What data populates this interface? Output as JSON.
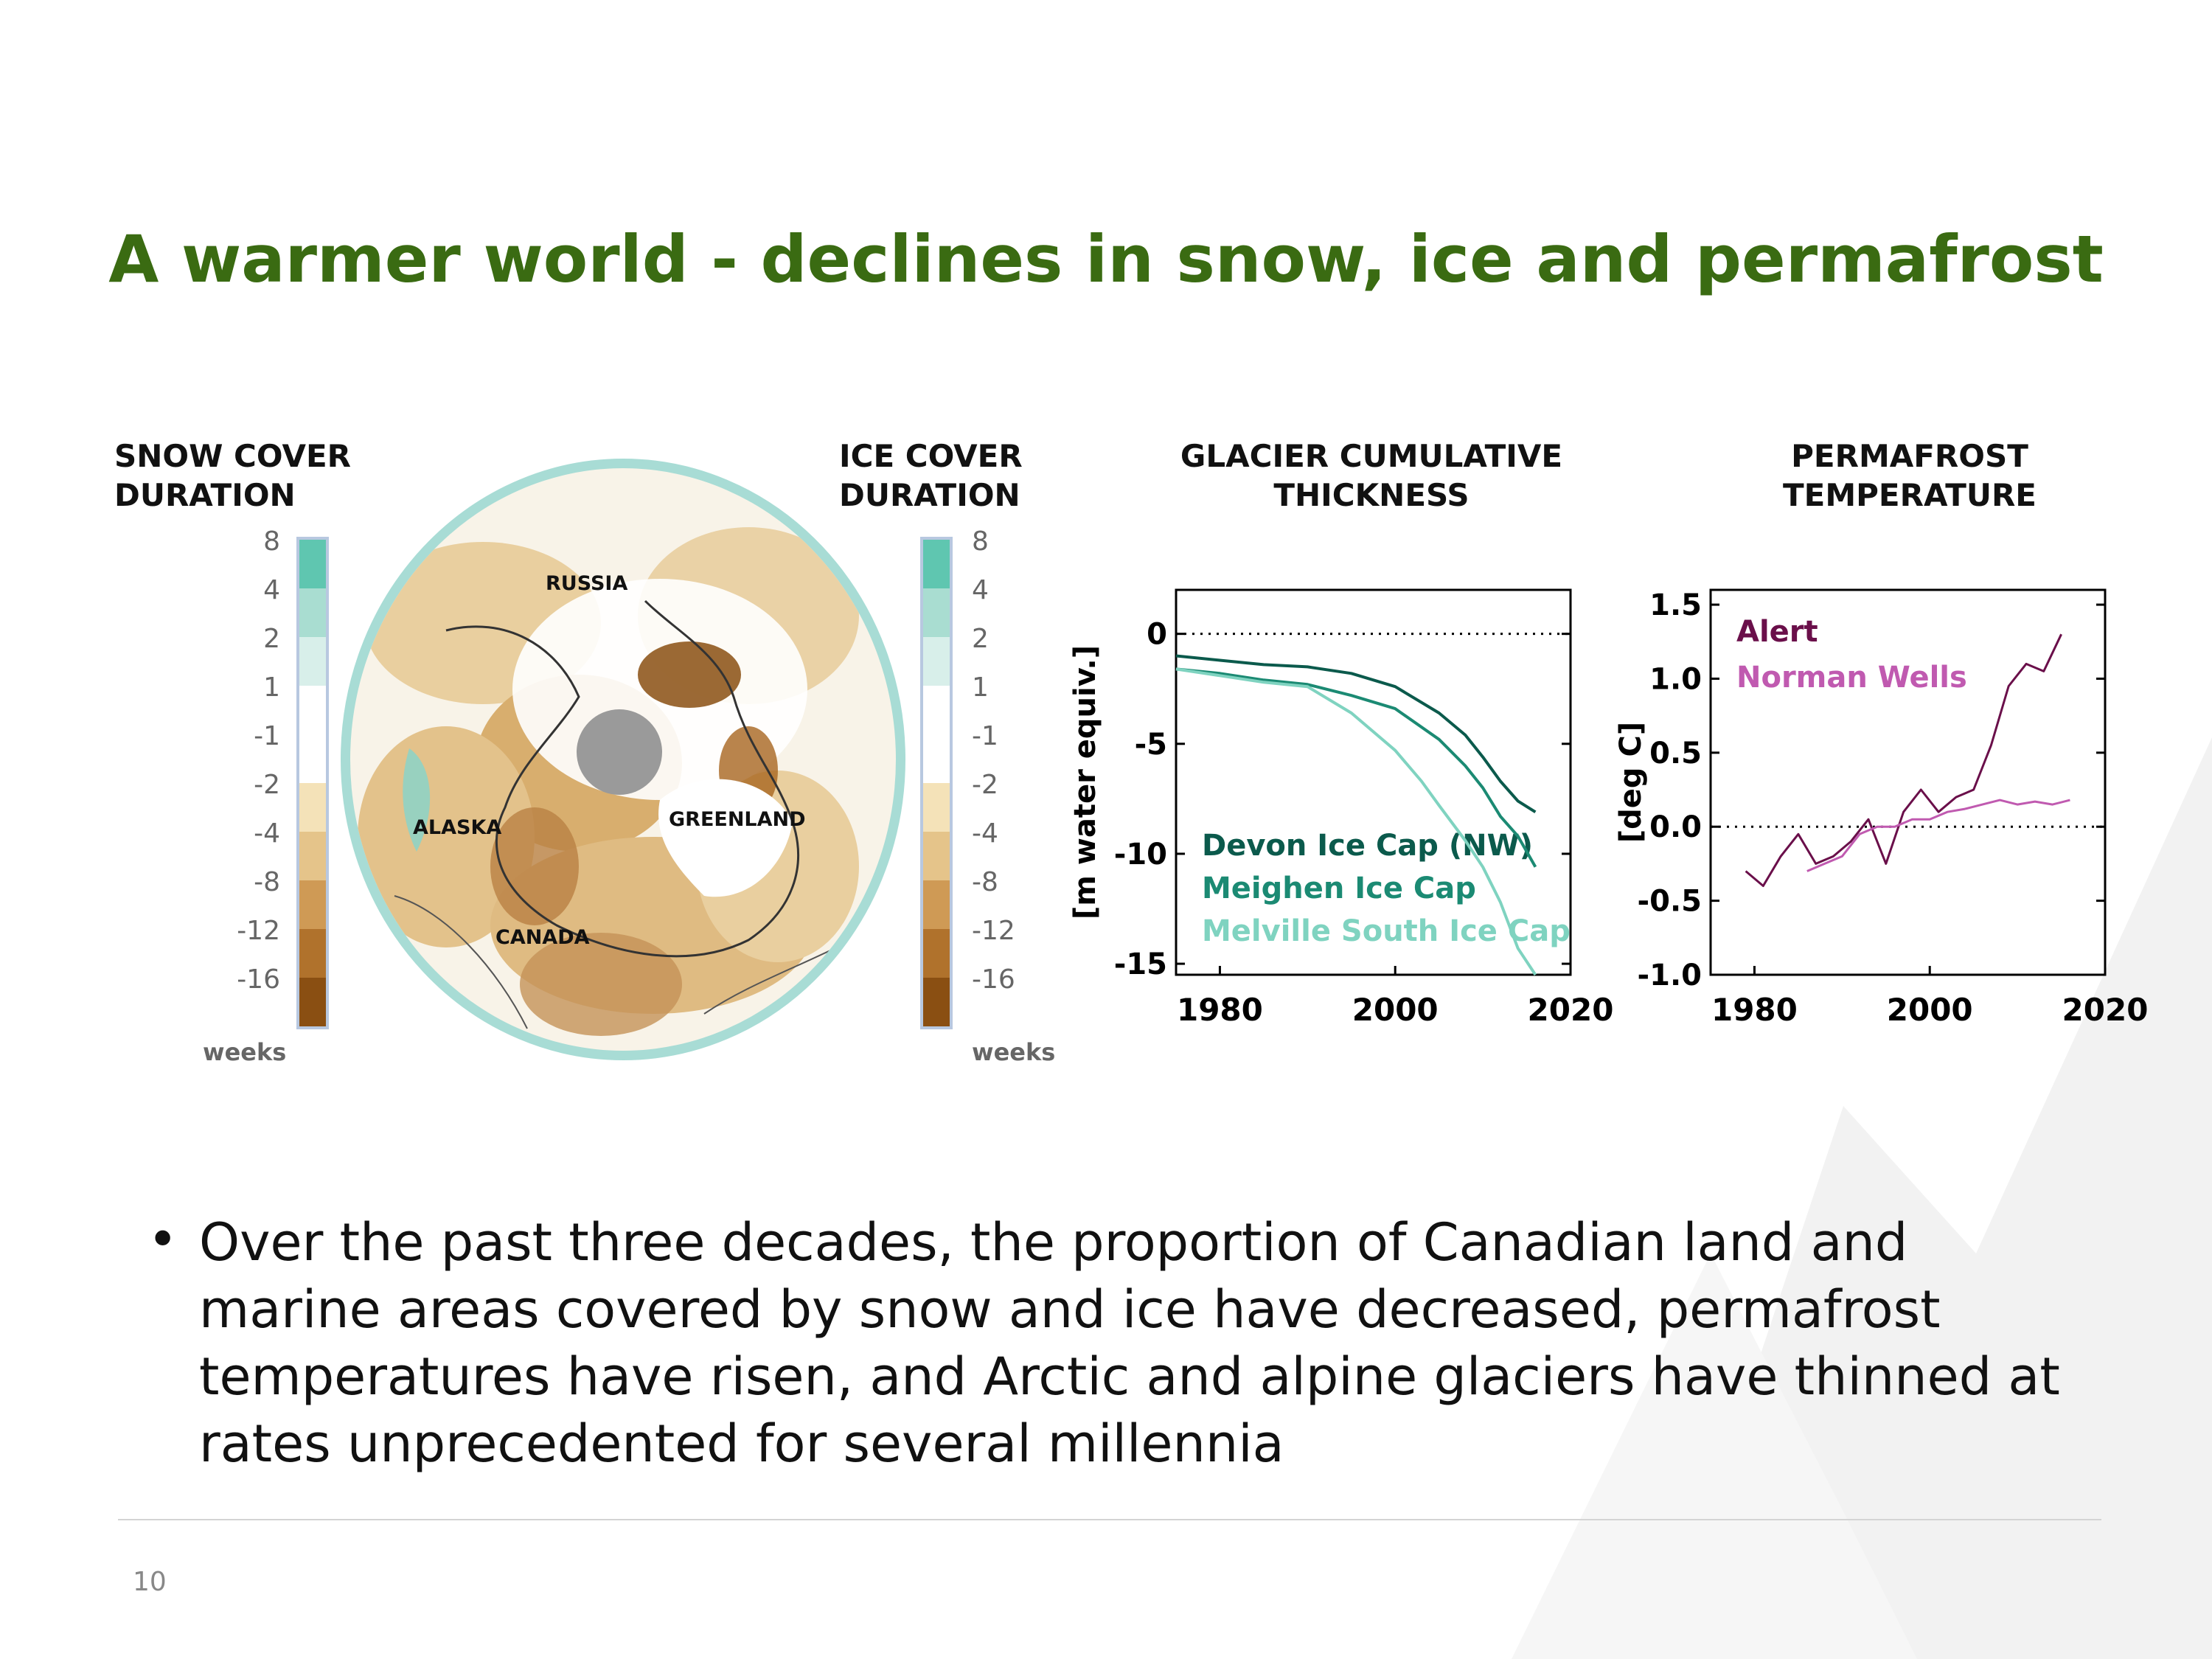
{
  "slide": {
    "title": "A warmer world - declines in snow, ice and permafrost",
    "bullet": "Over the past three decades, the proportion of Canadian land and marine areas covered by snow and ice have decreased, permafrost temperatures have risen, and Arctic and alpine glaciers have thinned at rates unprecedented for several millennia",
    "page_number": "10"
  },
  "panels": {
    "snow_title": [
      "SNOW COVER",
      "DURATION"
    ],
    "ice_title": [
      "ICE COVER",
      "DURATION"
    ],
    "glacier_title": [
      "GLACIER CUMULATIVE",
      "THICKNESS"
    ],
    "permafrost_title": [
      "PERMAFROST",
      "TEMPERATURE"
    ]
  },
  "map": {
    "labels": {
      "russia": "RUSSIA",
      "alaska": "ALASKA",
      "greenland": "GREENLAND",
      "canada": "CANADA"
    },
    "colorbar_ticks": [
      "8",
      "4",
      "2",
      "1",
      "-1",
      "-2",
      "-4",
      "-8",
      "-12",
      "-16"
    ],
    "colorbar_colors": [
      "#5fc6b0",
      "#a9ddd1",
      "#d8efea",
      "#ffffff",
      "#ffffff",
      "#f4e2b8",
      "#e5c48a",
      "#cf9a55",
      "#b0722c",
      "#8a4f12"
    ],
    "colorbar_unit": "weeks",
    "ring_color": "#a8dcd5"
  },
  "colors": {
    "title": "#3a6b12",
    "devon": "#0b5a4c",
    "meighen": "#1b8a73",
    "melville": "#7fd3c0",
    "alert": "#6a0f4a",
    "norman_wells": "#c05ab0"
  },
  "chart_data": [
    {
      "type": "line",
      "ylabel": "[m water equiv.]",
      "xlim": [
        1975,
        2020
      ],
      "ylim": [
        -15.5,
        2
      ],
      "xticks": [
        1980,
        2000,
        2020
      ],
      "yticks": [
        0,
        -5,
        -10,
        -15
      ],
      "reference_line": 0,
      "series": [
        {
          "name": "Devon Ice Cap (NW)",
          "color": "#0b5a4c",
          "x": [
            1975,
            1980,
            1985,
            1990,
            1995,
            2000,
            2005,
            2008,
            2010,
            2012,
            2014,
            2016
          ],
          "y": [
            -1.0,
            -1.2,
            -1.4,
            -1.5,
            -1.8,
            -2.4,
            -3.6,
            -4.6,
            -5.6,
            -6.7,
            -7.6,
            -8.1
          ]
        },
        {
          "name": "Meighen Ice Cap",
          "color": "#1b8a73",
          "x": [
            1975,
            1980,
            1985,
            1990,
            1995,
            2000,
            2005,
            2008,
            2010,
            2012,
            2014,
            2016
          ],
          "y": [
            -1.6,
            -1.8,
            -2.1,
            -2.3,
            -2.8,
            -3.4,
            -4.8,
            -6.0,
            -7.0,
            -8.3,
            -9.2,
            -10.6
          ]
        },
        {
          "name": "Melville South Ice Cap",
          "color": "#7fd3c0",
          "x": [
            1975,
            1980,
            1985,
            1990,
            1995,
            2000,
            2003,
            2005,
            2008,
            2010,
            2012,
            2014,
            2016
          ],
          "y": [
            -1.6,
            -1.9,
            -2.2,
            -2.4,
            -3.6,
            -5.3,
            -6.7,
            -7.8,
            -9.4,
            -10.6,
            -12.2,
            -14.3,
            -15.5
          ]
        }
      ]
    },
    {
      "type": "line",
      "ylabel": "[deg C]",
      "xlim": [
        1975,
        2020
      ],
      "ylim": [
        -1.0,
        1.6
      ],
      "xticks": [
        1980,
        2000,
        2020
      ],
      "yticks": [
        1.5,
        1.0,
        0.5,
        0.0,
        -0.5,
        -1.0
      ],
      "reference_line": 0,
      "series": [
        {
          "name": "Alert",
          "color": "#6a0f4a",
          "x": [
            1979,
            1981,
            1983,
            1985,
            1987,
            1989,
            1991,
            1993,
            1995,
            1997,
            1999,
            2001,
            2003,
            2005,
            2007,
            2009,
            2011,
            2013,
            2015
          ],
          "y": [
            -0.3,
            -0.4,
            -0.2,
            -0.05,
            -0.25,
            -0.2,
            -0.1,
            0.05,
            -0.25,
            0.1,
            0.25,
            0.1,
            0.2,
            0.25,
            0.55,
            0.95,
            1.1,
            1.05,
            1.3
          ]
        },
        {
          "name": "Norman Wells",
          "color": "#c05ab0",
          "x": [
            1986,
            1988,
            1990,
            1992,
            1994,
            1996,
            1998,
            2000,
            2002,
            2004,
            2006,
            2008,
            2010,
            2012,
            2014,
            2016
          ],
          "y": [
            -0.3,
            -0.25,
            -0.2,
            -0.05,
            0.0,
            0.0,
            0.05,
            0.05,
            0.1,
            0.12,
            0.15,
            0.18,
            0.15,
            0.17,
            0.15,
            0.18
          ]
        }
      ]
    }
  ]
}
